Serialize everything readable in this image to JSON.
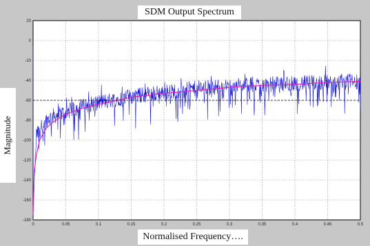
{
  "chart_data": {
    "type": "line",
    "title": "SDM Output Spectrum",
    "xlabel": "Normalised Frequency….",
    "ylabel": "Magnitude",
    "xlim": [
      0,
      0.5
    ],
    "ylim": [
      -180,
      20
    ],
    "xticks": [
      "0",
      "0.05",
      "0.1",
      "0.15",
      "0.2",
      "0.25",
      "0.3",
      "0.35",
      "0.4",
      "0.45",
      "0.5"
    ],
    "yticks": [
      "20",
      "0",
      "-20",
      "-40",
      "-60",
      "-80",
      "-100",
      "-120",
      "-140",
      "-160",
      "-180"
    ],
    "grid": true,
    "series": [
      {
        "style": "noisy spectrum",
        "color": "#1a1acc",
        "x": [
          0,
          0.005,
          0.01,
          0.02,
          0.03,
          0.05,
          0.075,
          0.1,
          0.15,
          0.2,
          0.25,
          0.3,
          0.35,
          0.4,
          0.45,
          0.5
        ],
        "y": [
          -170,
          -95,
          -90,
          -80,
          -76,
          -72,
          -66,
          -62,
          -56,
          -52,
          -48,
          -46,
          -44,
          -43,
          -42,
          -41
        ]
      },
      {
        "style": "smooth curve",
        "color": "#e020c0",
        "x": [
          0,
          0.002,
          0.005,
          0.01,
          0.02,
          0.03,
          0.05,
          0.075,
          0.1,
          0.15,
          0.2,
          0.25,
          0.3,
          0.35,
          0.4,
          0.45,
          0.5
        ],
        "y": [
          -175,
          -130,
          -115,
          -100,
          -88,
          -82,
          -74,
          -68,
          -64,
          -57,
          -53,
          -50,
          -47,
          -45,
          -44,
          -42,
          -41
        ]
      },
      {
        "style": "dashed reference",
        "color": "#000000",
        "x": [
          0,
          0.5
        ],
        "y": [
          -60,
          -60
        ]
      }
    ]
  }
}
